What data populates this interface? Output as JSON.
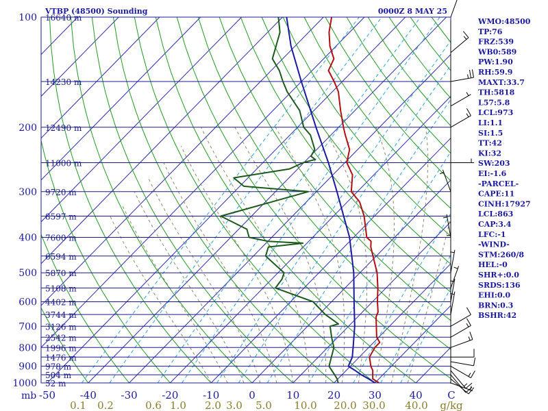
{
  "chart_data": {
    "type": "line",
    "title": "VTBP (48500) Sounding",
    "time": "0000Z  8 MAY 25",
    "x_axis": {
      "label": "mb",
      "temp_ticks": [
        -50,
        -40,
        -30,
        -20,
        -10,
        0,
        10,
        20,
        30,
        40,
        50
      ],
      "temp_labels": [
        "-50",
        "-40",
        "-30",
        "-20",
        "-10",
        "0",
        "10",
        "20",
        "30",
        "40",
        "C"
      ],
      "mixing_ratio_labels": [
        "0.1",
        "0.2",
        "0.6",
        "1.0",
        "2.0",
        "3.0",
        "5.0",
        "10.0",
        "20.0",
        "30.0",
        "40.0",
        "g/kg"
      ],
      "mixing_ratio_values": [
        0.1,
        0.2,
        0.6,
        1.0,
        2.0,
        3.0,
        5.0,
        10.0,
        20.0,
        30.0,
        40.0
      ]
    },
    "y_axis": {
      "scale": "log",
      "pressure_labels": [
        100,
        200,
        300,
        400,
        500,
        600,
        700,
        800,
        900,
        1000
      ],
      "range": [
        1000,
        100
      ]
    },
    "height_levels": [
      {
        "p": 100,
        "label": "16640 m"
      },
      {
        "p": 150,
        "label": "14230 m"
      },
      {
        "p": 200,
        "label": "12490 m"
      },
      {
        "p": 250,
        "label": "11000 m"
      },
      {
        "p": 300,
        "label": "9720 m"
      },
      {
        "p": 350,
        "label": "8597 m"
      },
      {
        "p": 400,
        "label": "7600 m"
      },
      {
        "p": 450,
        "label": "6594 m"
      },
      {
        "p": 500,
        "label": "5870 m"
      },
      {
        "p": 550,
        "label": "5108 m"
      },
      {
        "p": 600,
        "label": "4402 m"
      },
      {
        "p": 650,
        "label": "3744 m"
      },
      {
        "p": 700,
        "label": "3126 m"
      },
      {
        "p": 750,
        "label": "2542 m"
      },
      {
        "p": 800,
        "label": "1996 m"
      },
      {
        "p": 850,
        "label": "1476 m"
      },
      {
        "p": 900,
        "label": "978 m"
      },
      {
        "p": 950,
        "label": "504 m"
      },
      {
        "p": 1000,
        "label": "52 m"
      }
    ],
    "series": [
      {
        "role": "temperature",
        "color": "#b01010",
        "points": [
          [
            1000,
            31
          ],
          [
            975,
            28.5
          ],
          [
            950,
            27.5
          ],
          [
            925,
            26.5
          ],
          [
            900,
            25
          ],
          [
            850,
            22.5
          ],
          [
            800,
            21.5
          ],
          [
            775,
            21.5
          ],
          [
            750,
            19.5
          ],
          [
            700,
            16.8
          ],
          [
            660,
            14.5
          ],
          [
            640,
            13.8
          ],
          [
            600,
            11.2
          ],
          [
            550,
            8
          ],
          [
            500,
            4.2
          ],
          [
            450,
            -0.8
          ],
          [
            425,
            -3.5
          ],
          [
            410,
            -4.8
          ],
          [
            400,
            -6.8
          ],
          [
            350,
            -12.5
          ],
          [
            320,
            -17
          ],
          [
            300,
            -21.5
          ],
          [
            270,
            -25.2
          ],
          [
            250,
            -29.5
          ],
          [
            230,
            -32
          ],
          [
            210,
            -36.5
          ],
          [
            200,
            -38.8
          ],
          [
            180,
            -43.5
          ],
          [
            160,
            -48.5
          ],
          [
            150,
            -52
          ],
          [
            140,
            -56
          ],
          [
            130,
            -57.5
          ],
          [
            120,
            -61.5
          ],
          [
            110,
            -65
          ],
          [
            100,
            -68
          ]
        ]
      },
      {
        "role": "dewpoint",
        "color": "#1a5a1a",
        "points": [
          [
            1000,
            21
          ],
          [
            975,
            19.8
          ],
          [
            950,
            18.2
          ],
          [
            925,
            16.5
          ],
          [
            900,
            14.8
          ],
          [
            850,
            13.2
          ],
          [
            800,
            11.5
          ],
          [
            750,
            8.5
          ],
          [
            700,
            5.5
          ],
          [
            690,
            7
          ],
          [
            650,
            1.5
          ],
          [
            600,
            -4.5
          ],
          [
            550,
            -17
          ],
          [
            520,
            -17.5
          ],
          [
            500,
            -18.5
          ],
          [
            450,
            -27
          ],
          [
            425,
            -28.5
          ],
          [
            415,
            -21
          ],
          [
            410,
            -30
          ],
          [
            400,
            -35.5
          ],
          [
            380,
            -38
          ],
          [
            350,
            -47.5
          ],
          [
            320,
            -38.5
          ],
          [
            300,
            -32
          ],
          [
            290,
            -49
          ],
          [
            275,
            -53.5
          ],
          [
            260,
            -42
          ],
          [
            250,
            -40.2
          ],
          [
            245,
            -38
          ],
          [
            240,
            -39.8
          ],
          [
            230,
            -40.5
          ],
          [
            210,
            -45
          ],
          [
            200,
            -48.5
          ],
          [
            180,
            -53.5
          ],
          [
            160,
            -61
          ],
          [
            150,
            -64.5
          ],
          [
            140,
            -68
          ],
          [
            130,
            -72.5
          ],
          [
            110,
            -77
          ],
          [
            100,
            -81
          ]
        ]
      },
      {
        "role": "parcel",
        "color": "#1a1aa0",
        "points": [
          [
            1000,
            30
          ],
          [
            975,
            27.5
          ],
          [
            950,
            24.7
          ],
          [
            925,
            22.2
          ],
          [
            900,
            19.5
          ],
          [
            850,
            18.3
          ],
          [
            800,
            16.2
          ],
          [
            700,
            11.5
          ],
          [
            600,
            5.5
          ],
          [
            500,
            -1.5
          ],
          [
            400,
            -11
          ],
          [
            350,
            -17.5
          ],
          [
            300,
            -25
          ],
          [
            250,
            -34
          ],
          [
            200,
            -45.5
          ],
          [
            150,
            -60
          ],
          [
            120,
            -71
          ],
          [
            100,
            -79
          ]
        ]
      }
    ],
    "wind_barbs": [
      {
        "p": 1000,
        "dir": 110,
        "spd": 5
      },
      {
        "p": 975,
        "dir": 130,
        "spd": 10
      },
      {
        "p": 950,
        "dir": 140,
        "spd": 10
      },
      {
        "p": 925,
        "dir": 140,
        "spd": 15
      },
      {
        "p": 900,
        "dir": 120,
        "spd": 15
      },
      {
        "p": 875,
        "dir": 100,
        "spd": 10
      },
      {
        "p": 850,
        "dir": 90,
        "spd": 10
      },
      {
        "p": 800,
        "dir": 70,
        "spd": 15
      },
      {
        "p": 750,
        "dir": 60,
        "spd": 15
      },
      {
        "p": 700,
        "dir": 60,
        "spd": 10
      },
      {
        "p": 650,
        "dir": 10,
        "spd": 5
      },
      {
        "p": 600,
        "dir": 10,
        "spd": 5
      },
      {
        "p": 550,
        "dir": 20,
        "spd": 5
      },
      {
        "p": 500,
        "dir": 10,
        "spd": 5
      },
      {
        "p": 450,
        "dir": 0,
        "spd": 5
      },
      {
        "p": 400,
        "dir": 350,
        "spd": 5
      },
      {
        "p": 300,
        "dir": 340,
        "spd": 5
      },
      {
        "p": 250,
        "dir": 90,
        "spd": 5
      },
      {
        "p": 200,
        "dir": 60,
        "spd": 15
      },
      {
        "p": 175,
        "dir": 60,
        "spd": 5
      },
      {
        "p": 150,
        "dir": 80,
        "spd": 25
      },
      {
        "p": 125,
        "dir": 50,
        "spd": 15
      },
      {
        "p": 100,
        "dir": 20,
        "spd": 15
      }
    ],
    "legend": "none",
    "grid": true
  },
  "indices": [
    "WMO:48500",
    "TP:76",
    "FRZ:539",
    "WB0:589",
    "PW:1.90",
    "RH:59.9",
    "MAXT:33.7",
    "TH:5818",
    "L57:5.8",
    "LCL:973",
    "LI:1.1",
    "SI:1.5",
    "TT:42",
    "KI:32",
    "SW:203",
    "EI:-1.6",
    "-PARCEL-",
    "CAPE:11",
    "CINH:17927",
    "LCL:863",
    "CAP:3.4",
    "LFC:-1",
    "-WIND-",
    "STM:260/8",
    "HEL:-0",
    "SHR+:0.0",
    "SRDS:136",
    "EHI:0.0",
    "BRN:0.3",
    "BSHR:42"
  ],
  "colors": {
    "isobar": "#1a1a8c",
    "isotherm": "#2a2ab4",
    "dry_adiabat": "#1f9a1f",
    "moist_adiabat": "#8a8a66",
    "mixing_ratio": "#2ca0e0",
    "temperature": "#b01010",
    "dewpoint": "#1a5a1a",
    "parcel": "#1a1aa0",
    "axis": "#000000"
  }
}
